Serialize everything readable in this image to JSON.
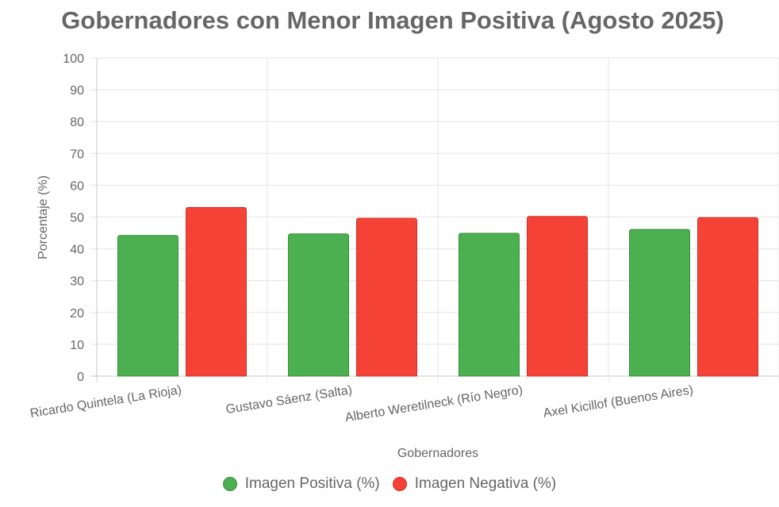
{
  "chart_data": {
    "type": "bar",
    "title": "Gobernadores con Menor Imagen Positiva (Agosto 2025)",
    "xlabel": "Gobernadores",
    "ylabel": "Porcentaje (%)",
    "ylim": [
      0,
      100
    ],
    "yticks": [
      0,
      10,
      20,
      30,
      40,
      50,
      60,
      70,
      80,
      90,
      100
    ],
    "categories": [
      "Ricardo Quintela (La Rioja)",
      "Gustavo Sáenz (Salta)",
      "Alberto Weretilneck (Río Negro)",
      "Axel Kicillof (Buenos Aires)"
    ],
    "series": [
      {
        "name": "Imagen Positiva (%)",
        "values": [
          44.2,
          44.7,
          44.9,
          46.1
        ],
        "color": "#4caf50",
        "border": "#388e3c"
      },
      {
        "name": "Imagen Negativa (%)",
        "values": [
          53.0,
          49.6,
          50.2,
          49.8
        ],
        "color": "#f44336",
        "border": "#d32f2f"
      }
    ],
    "grid": true,
    "legend_position": "bottom"
  }
}
